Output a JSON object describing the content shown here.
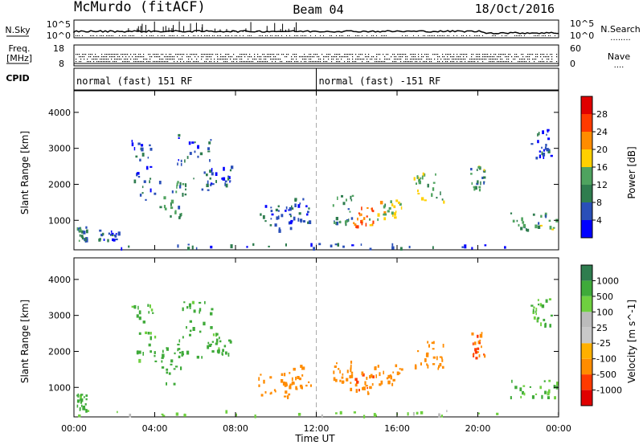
{
  "header": {
    "station": "McMurdo (fitACF)",
    "beam": "Beam 04",
    "date": "18/Oct/2016"
  },
  "status_labels": {
    "nsky": "N.Sky",
    "freq": "Freq.",
    "freq_unit": "[MHz]",
    "cpid": "CPID",
    "nsearch": "N.Search",
    "nsearch_dots": "........",
    "nave": "Nave",
    "nave_dots": "....",
    "noise_ticks": [
      "10^5",
      "10^0"
    ],
    "noise_right_ticks": [
      "10^5",
      "10^0"
    ],
    "freq_ticks": [
      "18",
      "8"
    ],
    "nave_ticks": [
      "60",
      "0"
    ]
  },
  "cpid": {
    "segments": [
      {
        "start_hour": 0,
        "label": "normal (fast) 151 RF"
      },
      {
        "start_hour": 12,
        "label": "normal (fast) -151 RF"
      }
    ]
  },
  "colors": {
    "power_scale": [
      "#0000ff",
      "#2a4fb8",
      "#2f7d4f",
      "#4fa35f",
      "#ffd000",
      "#ff8c00",
      "#ff3a00",
      "#e00000"
    ],
    "velocity_scale": [
      "#e00000",
      "#ff3a00",
      "#ff8c00",
      "#ffb000",
      "#c8c8c8",
      "#bbbbbb",
      "#6fd040",
      "#3faa3a",
      "#2f7d4f",
      "#2a4fb8",
      "#1020e0"
    ]
  },
  "chart_data": [
    {
      "type": "heatmap",
      "name": "power",
      "xlabel": "",
      "ylabel": "Slant Range [km]",
      "xlim": [
        0,
        24
      ],
      "ylim": [
        180,
        4600
      ],
      "yticks": [
        "1000",
        "2000",
        "3000",
        "4000"
      ],
      "colorbar_label": "Power [dB]",
      "colorbar_ticks": [
        "4",
        "8",
        "12",
        "16",
        "20",
        "24",
        "28"
      ],
      "clim": [
        0,
        32
      ],
      "grid": true,
      "echo_regions": [
        {
          "t": [
            0.0,
            24.0
          ],
          "r": [
            190,
            330
          ],
          "value": 6
        },
        {
          "t": [
            0.1,
            0.6
          ],
          "r": [
            350,
            800
          ],
          "value": 10
        },
        {
          "t": [
            1.2,
            2.2
          ],
          "r": [
            420,
            700
          ],
          "value": 5
        },
        {
          "t": [
            2.8,
            4.0
          ],
          "r": [
            1500,
            3300
          ],
          "value": 7
        },
        {
          "t": [
            4.2,
            5.5
          ],
          "r": [
            1000,
            2100
          ],
          "value": 11
        },
        {
          "t": [
            5.1,
            6.8
          ],
          "r": [
            1800,
            3400
          ],
          "value": 7
        },
        {
          "t": [
            6.5,
            7.8
          ],
          "r": [
            1900,
            2500
          ],
          "value": 6
        },
        {
          "t": [
            9.1,
            10.8
          ],
          "r": [
            700,
            1400
          ],
          "value": 7
        },
        {
          "t": [
            10.6,
            11.7
          ],
          "r": [
            900,
            1600
          ],
          "value": 6
        },
        {
          "t": [
            12.8,
            13.8
          ],
          "r": [
            900,
            1700
          ],
          "value": 10
        },
        {
          "t": [
            13.8,
            14.8
          ],
          "r": [
            800,
            1400
          ],
          "value": 22
        },
        {
          "t": [
            14.6,
            16.2
          ],
          "r": [
            1000,
            1600
          ],
          "value": 16
        },
        {
          "t": [
            16.8,
            18.3
          ],
          "r": [
            1500,
            2300
          ],
          "value": 14
        },
        {
          "t": [
            19.6,
            20.3
          ],
          "r": [
            1800,
            2500
          ],
          "value": 12
        },
        {
          "t": [
            21.5,
            24.0
          ],
          "r": [
            700,
            1200
          ],
          "value": 12
        },
        {
          "t": [
            22.6,
            23.6
          ],
          "r": [
            2700,
            3500
          ],
          "value": 6
        }
      ]
    },
    {
      "type": "heatmap",
      "name": "velocity",
      "xlabel": "Time UT",
      "ylabel": "Slant Range [km]",
      "xlim": [
        0,
        24
      ],
      "ylim": [
        180,
        4600
      ],
      "xticks": [
        "00:00",
        "04:00",
        "08:00",
        "12:00",
        "16:00",
        "20:00",
        "00:00"
      ],
      "yticks": [
        "1000",
        "2000",
        "3000",
        "4000"
      ],
      "colorbar_label": "Velocity [m s^-1]",
      "colorbar_ticks": [
        "-1000",
        "-500",
        "-100",
        "-25",
        "25",
        "100",
        "500",
        "1000"
      ],
      "clim": [
        -1200,
        1200
      ],
      "grid": true,
      "echo_regions": [
        {
          "t": [
            0.0,
            24.0
          ],
          "r": [
            190,
            330
          ],
          "value": 40
        },
        {
          "t": [
            0.1,
            0.6
          ],
          "r": [
            350,
            800
          ],
          "value": 150
        },
        {
          "t": [
            2.8,
            4.0
          ],
          "r": [
            1500,
            3300
          ],
          "value": 120
        },
        {
          "t": [
            4.2,
            5.5
          ],
          "r": [
            1000,
            2100
          ],
          "value": 200
        },
        {
          "t": [
            5.1,
            6.8
          ],
          "r": [
            1800,
            3400
          ],
          "value": 200
        },
        {
          "t": [
            6.5,
            7.8
          ],
          "r": [
            1900,
            2500
          ],
          "value": 150
        },
        {
          "t": [
            9.1,
            10.8
          ],
          "r": [
            700,
            1400
          ],
          "value": -200
        },
        {
          "t": [
            10.6,
            11.7
          ],
          "r": [
            900,
            1600
          ],
          "value": -200
        },
        {
          "t": [
            12.8,
            13.8
          ],
          "r": [
            900,
            1700
          ],
          "value": -300
        },
        {
          "t": [
            13.8,
            14.8
          ],
          "r": [
            800,
            1400
          ],
          "value": -400
        },
        {
          "t": [
            14.6,
            16.2
          ],
          "r": [
            1000,
            1600
          ],
          "value": -350
        },
        {
          "t": [
            16.8,
            18.3
          ],
          "r": [
            1500,
            2300
          ],
          "value": -300
        },
        {
          "t": [
            19.6,
            20.3
          ],
          "r": [
            1800,
            2500
          ],
          "value": -500
        },
        {
          "t": [
            21.5,
            24.0
          ],
          "r": [
            700,
            1200
          ],
          "value": 100
        },
        {
          "t": [
            22.6,
            23.6
          ],
          "r": [
            2700,
            3500
          ],
          "value": 100
        }
      ]
    }
  ]
}
